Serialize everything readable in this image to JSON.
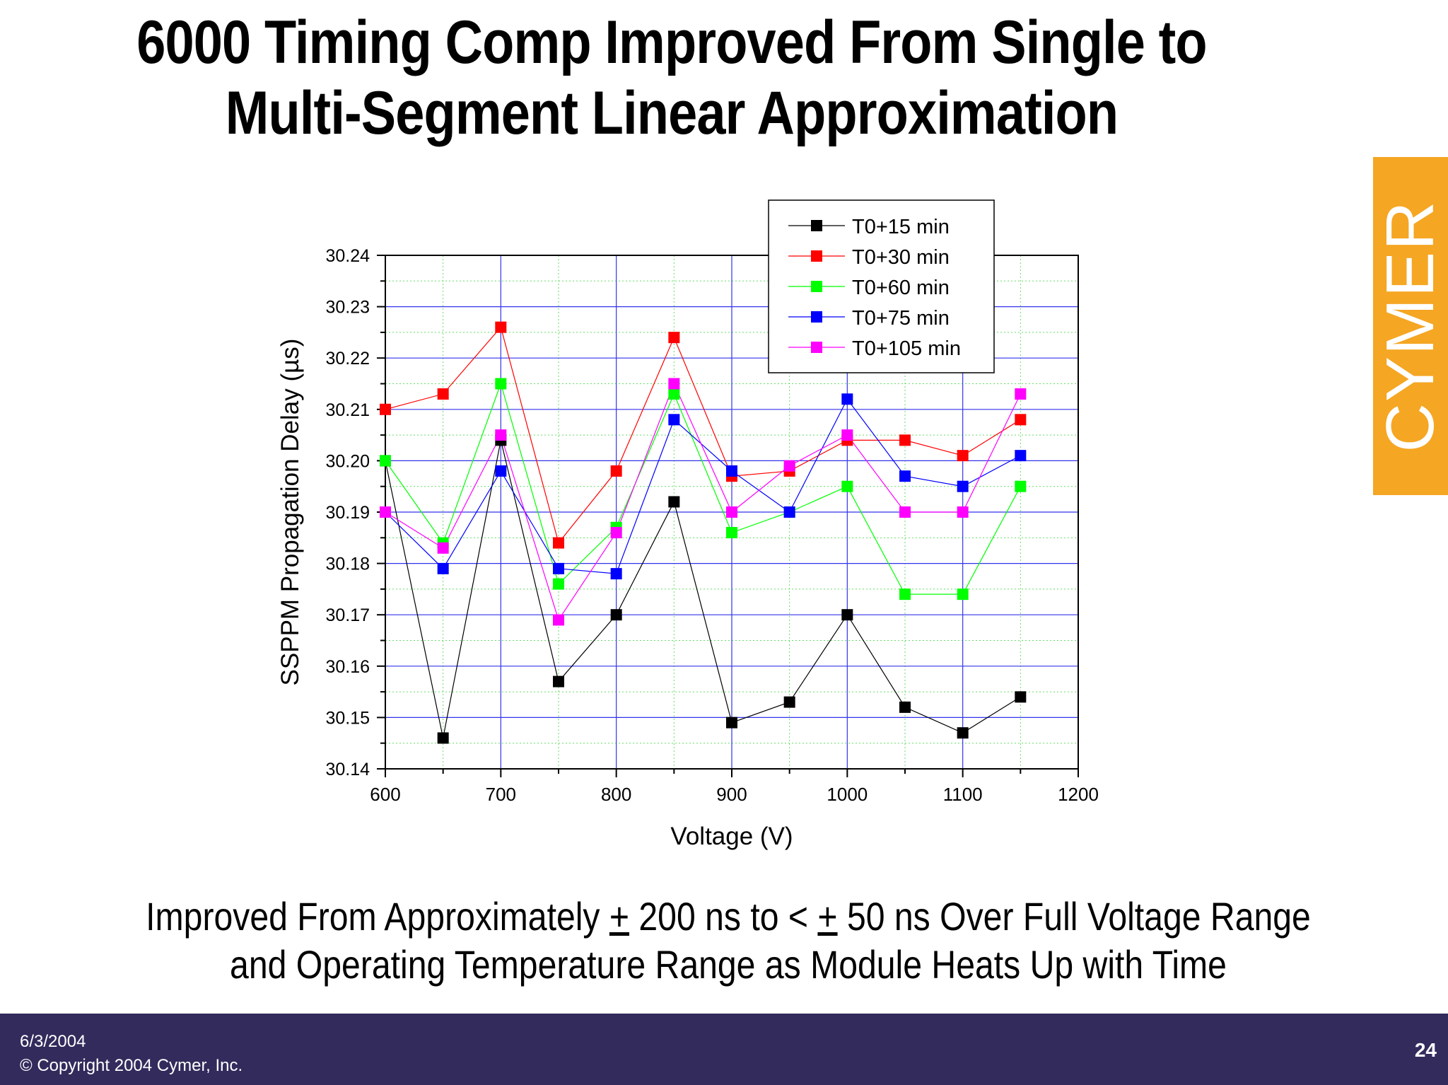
{
  "title": {
    "line1": "6000 Timing Comp Improved From Single to",
    "line2": "Multi-Segment Linear Approximation"
  },
  "logo": {
    "text": "CYMER",
    "color": "#f5a623"
  },
  "caption": {
    "line1_a": "Improved From Approximately ",
    "line1_pm1": "+",
    "line1_b": " 200 ns to < ",
    "line1_pm2": "+",
    "line1_c": " 50 ns Over Full Voltage Range",
    "line2": "and Operating Temperature Range as Module Heats Up with Time"
  },
  "footer": {
    "date": "6/3/2004",
    "copyright": "© Copyright 2004 Cymer, Inc.",
    "page": "24",
    "background": "#332b5c"
  },
  "chart_data": {
    "type": "line",
    "xlabel": "Voltage (V)",
    "ylabel": "SSPPM Propagation Delay (µs)",
    "xlim": [
      600,
      1200
    ],
    "ylim": [
      30.14,
      30.24
    ],
    "xticks": [
      "600",
      "700",
      "800",
      "900",
      "1000",
      "1100",
      "1200"
    ],
    "yticks": [
      "30.14",
      "30.15",
      "30.16",
      "30.17",
      "30.18",
      "30.19",
      "30.20",
      "30.21",
      "30.22",
      "30.23",
      "30.24"
    ],
    "grid": true,
    "legend_position": "top-right",
    "x": [
      600,
      650,
      700,
      750,
      800,
      850,
      900,
      950,
      1000,
      1050,
      1100,
      1150
    ],
    "series": [
      {
        "name": "T0+15 min",
        "color": "#000000",
        "values": [
          30.2,
          30.146,
          30.204,
          30.157,
          30.17,
          30.192,
          30.149,
          30.153,
          30.17,
          30.152,
          30.147,
          30.154
        ]
      },
      {
        "name": "T0+30 min",
        "color": "#ff0000",
        "values": [
          30.21,
          30.213,
          30.226,
          30.184,
          30.198,
          30.224,
          30.197,
          30.198,
          30.204,
          30.204,
          30.201,
          30.208
        ]
      },
      {
        "name": "T0+60 min",
        "color": "#00ff00",
        "values": [
          30.2,
          30.184,
          30.215,
          30.176,
          30.187,
          30.213,
          30.186,
          30.19,
          30.195,
          30.174,
          30.174,
          30.195
        ]
      },
      {
        "name": "T0+75 min",
        "color": "#0000ff",
        "values": [
          30.19,
          30.179,
          30.198,
          30.179,
          30.178,
          30.208,
          30.198,
          30.19,
          30.212,
          30.197,
          30.195,
          30.201
        ]
      },
      {
        "name": "T0+105 min",
        "color": "#ff00ff",
        "values": [
          30.19,
          30.183,
          30.205,
          30.169,
          30.186,
          30.215,
          30.19,
          30.199,
          30.205,
          30.19,
          30.19,
          30.213
        ]
      }
    ]
  }
}
